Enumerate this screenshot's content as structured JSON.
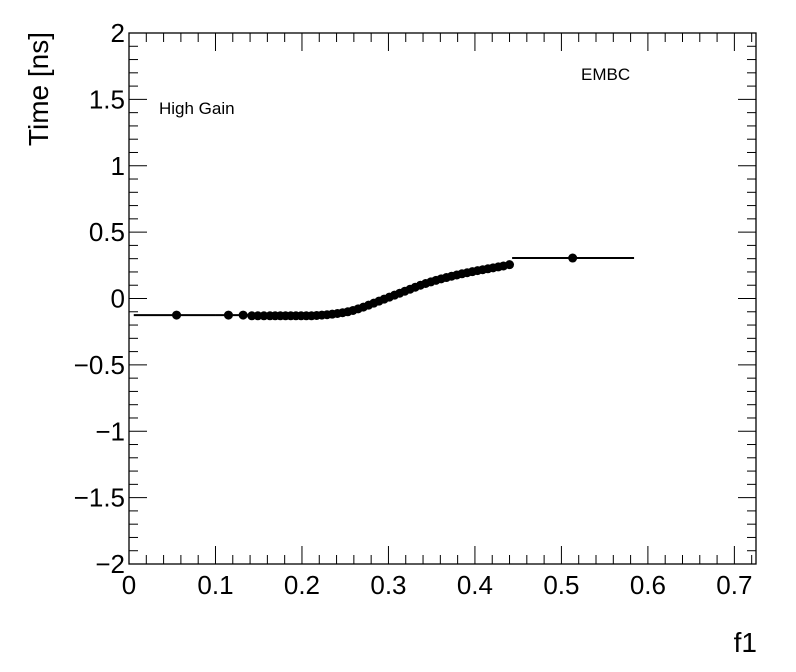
{
  "chart_data": {
    "type": "scatter",
    "xlabel": "f1",
    "ylabel": "Time [ns]",
    "xlim": [
      0,
      0.725
    ],
    "ylim": [
      -2,
      2
    ],
    "x_ticks": [
      0,
      0.1,
      0.2,
      0.3,
      0.4,
      0.5,
      0.6,
      0.7
    ],
    "x_tick_labels": [
      "0",
      "0.1",
      "0.2",
      "0.3",
      "0.4",
      "0.5",
      "0.6",
      "0.7"
    ],
    "y_ticks": [
      -2,
      -1.5,
      -1,
      -0.5,
      0,
      0.5,
      1,
      1.5,
      2
    ],
    "y_tick_labels": [
      "−2",
      "−1.5",
      "−1",
      "−0.5",
      "0",
      "0.5",
      "1",
      "1.5",
      "2"
    ],
    "annotations": {
      "gain": "High Gain",
      "detector": "EMBC"
    },
    "grid": false,
    "series_color": "#000000",
    "points": [
      {
        "x": 0.055,
        "y": -0.125,
        "xerr": [
          0.0055,
          0.1
        ]
      },
      {
        "x": 0.115,
        "y": -0.125,
        "xerr": [
          0.1,
          0.12
        ]
      },
      {
        "x": 0.132,
        "y": -0.125,
        "xerr": [
          0.12,
          0.14
        ]
      },
      {
        "x": 0.142,
        "y": -0.13,
        "xerr": [
          0.138,
          0.146
        ]
      },
      {
        "x": 0.149,
        "y": -0.13,
        "xerr": [
          0.146,
          0.153
        ]
      },
      {
        "x": 0.156,
        "y": -0.13,
        "xerr": [
          0.153,
          0.16
        ]
      },
      {
        "x": 0.163,
        "y": -0.13,
        "xerr": [
          0.16,
          0.166
        ]
      },
      {
        "x": 0.169,
        "y": -0.13,
        "xerr": [
          0.166,
          0.172
        ]
      },
      {
        "x": 0.175,
        "y": -0.13,
        "xerr": [
          0.172,
          0.178
        ]
      },
      {
        "x": 0.181,
        "y": -0.13,
        "xerr": [
          0.178,
          0.184
        ]
      },
      {
        "x": 0.187,
        "y": -0.13,
        "xerr": [
          0.184,
          0.19
        ]
      },
      {
        "x": 0.193,
        "y": -0.13,
        "xerr": [
          0.19,
          0.196
        ]
      },
      {
        "x": 0.199,
        "y": -0.13,
        "xerr": [
          0.196,
          0.202
        ]
      },
      {
        "x": 0.205,
        "y": -0.13,
        "xerr": [
          0.202,
          0.208
        ]
      },
      {
        "x": 0.211,
        "y": -0.13,
        "xerr": [
          0.208,
          0.214
        ]
      },
      {
        "x": 0.217,
        "y": -0.128,
        "xerr": [
          0.214,
          0.22
        ]
      },
      {
        "x": 0.223,
        "y": -0.125,
        "xerr": [
          0.22,
          0.226
        ]
      },
      {
        "x": 0.229,
        "y": -0.122,
        "xerr": [
          0.226,
          0.232
        ]
      },
      {
        "x": 0.235,
        "y": -0.118,
        "xerr": [
          0.232,
          0.238
        ]
      },
      {
        "x": 0.241,
        "y": -0.113,
        "xerr": [
          0.238,
          0.244
        ]
      },
      {
        "x": 0.247,
        "y": -0.107,
        "xerr": [
          0.244,
          0.25
        ]
      },
      {
        "x": 0.253,
        "y": -0.1,
        "xerr": [
          0.25,
          0.256
        ]
      },
      {
        "x": 0.259,
        "y": -0.09,
        "xerr": [
          0.256,
          0.262
        ]
      },
      {
        "x": 0.265,
        "y": -0.078,
        "xerr": [
          0.262,
          0.268
        ]
      },
      {
        "x": 0.271,
        "y": -0.065,
        "xerr": [
          0.268,
          0.274
        ]
      },
      {
        "x": 0.277,
        "y": -0.05,
        "xerr": [
          0.274,
          0.28
        ]
      },
      {
        "x": 0.283,
        "y": -0.035,
        "xerr": [
          0.28,
          0.286
        ]
      },
      {
        "x": 0.289,
        "y": -0.02,
        "xerr": [
          0.286,
          0.292
        ]
      },
      {
        "x": 0.295,
        "y": -0.005,
        "xerr": [
          0.292,
          0.298
        ]
      },
      {
        "x": 0.301,
        "y": 0.01,
        "xerr": [
          0.298,
          0.304
        ]
      },
      {
        "x": 0.307,
        "y": 0.025,
        "xerr": [
          0.304,
          0.31
        ]
      },
      {
        "x": 0.313,
        "y": 0.04,
        "xerr": [
          0.31,
          0.316
        ]
      },
      {
        "x": 0.319,
        "y": 0.055,
        "xerr": [
          0.316,
          0.322
        ]
      },
      {
        "x": 0.325,
        "y": 0.07,
        "xerr": [
          0.322,
          0.328
        ]
      },
      {
        "x": 0.331,
        "y": 0.085,
        "xerr": [
          0.328,
          0.334
        ]
      },
      {
        "x": 0.337,
        "y": 0.1,
        "xerr": [
          0.334,
          0.34
        ]
      },
      {
        "x": 0.343,
        "y": 0.113,
        "xerr": [
          0.34,
          0.346
        ]
      },
      {
        "x": 0.349,
        "y": 0.125,
        "xerr": [
          0.346,
          0.352
        ]
      },
      {
        "x": 0.355,
        "y": 0.137,
        "xerr": [
          0.352,
          0.358
        ]
      },
      {
        "x": 0.361,
        "y": 0.148,
        "xerr": [
          0.358,
          0.364
        ]
      },
      {
        "x": 0.367,
        "y": 0.158,
        "xerr": [
          0.364,
          0.37
        ]
      },
      {
        "x": 0.373,
        "y": 0.168,
        "xerr": [
          0.37,
          0.376
        ]
      },
      {
        "x": 0.379,
        "y": 0.177,
        "xerr": [
          0.376,
          0.382
        ]
      },
      {
        "x": 0.385,
        "y": 0.186,
        "xerr": [
          0.382,
          0.388
        ]
      },
      {
        "x": 0.391,
        "y": 0.194,
        "xerr": [
          0.388,
          0.394
        ]
      },
      {
        "x": 0.397,
        "y": 0.202,
        "xerr": [
          0.394,
          0.4
        ]
      },
      {
        "x": 0.403,
        "y": 0.21,
        "xerr": [
          0.4,
          0.406
        ]
      },
      {
        "x": 0.409,
        "y": 0.217,
        "xerr": [
          0.406,
          0.412
        ]
      },
      {
        "x": 0.415,
        "y": 0.224,
        "xerr": [
          0.412,
          0.418
        ]
      },
      {
        "x": 0.421,
        "y": 0.231,
        "xerr": [
          0.418,
          0.424
        ]
      },
      {
        "x": 0.427,
        "y": 0.238,
        "xerr": [
          0.424,
          0.43
        ]
      },
      {
        "x": 0.433,
        "y": 0.245,
        "xerr": [
          0.43,
          0.437
        ]
      },
      {
        "x": 0.44,
        "y": 0.255,
        "xerr": [
          0.437,
          0.443
        ]
      },
      {
        "x": 0.513,
        "y": 0.305,
        "xerr": [
          0.443,
          0.584
        ]
      }
    ]
  }
}
